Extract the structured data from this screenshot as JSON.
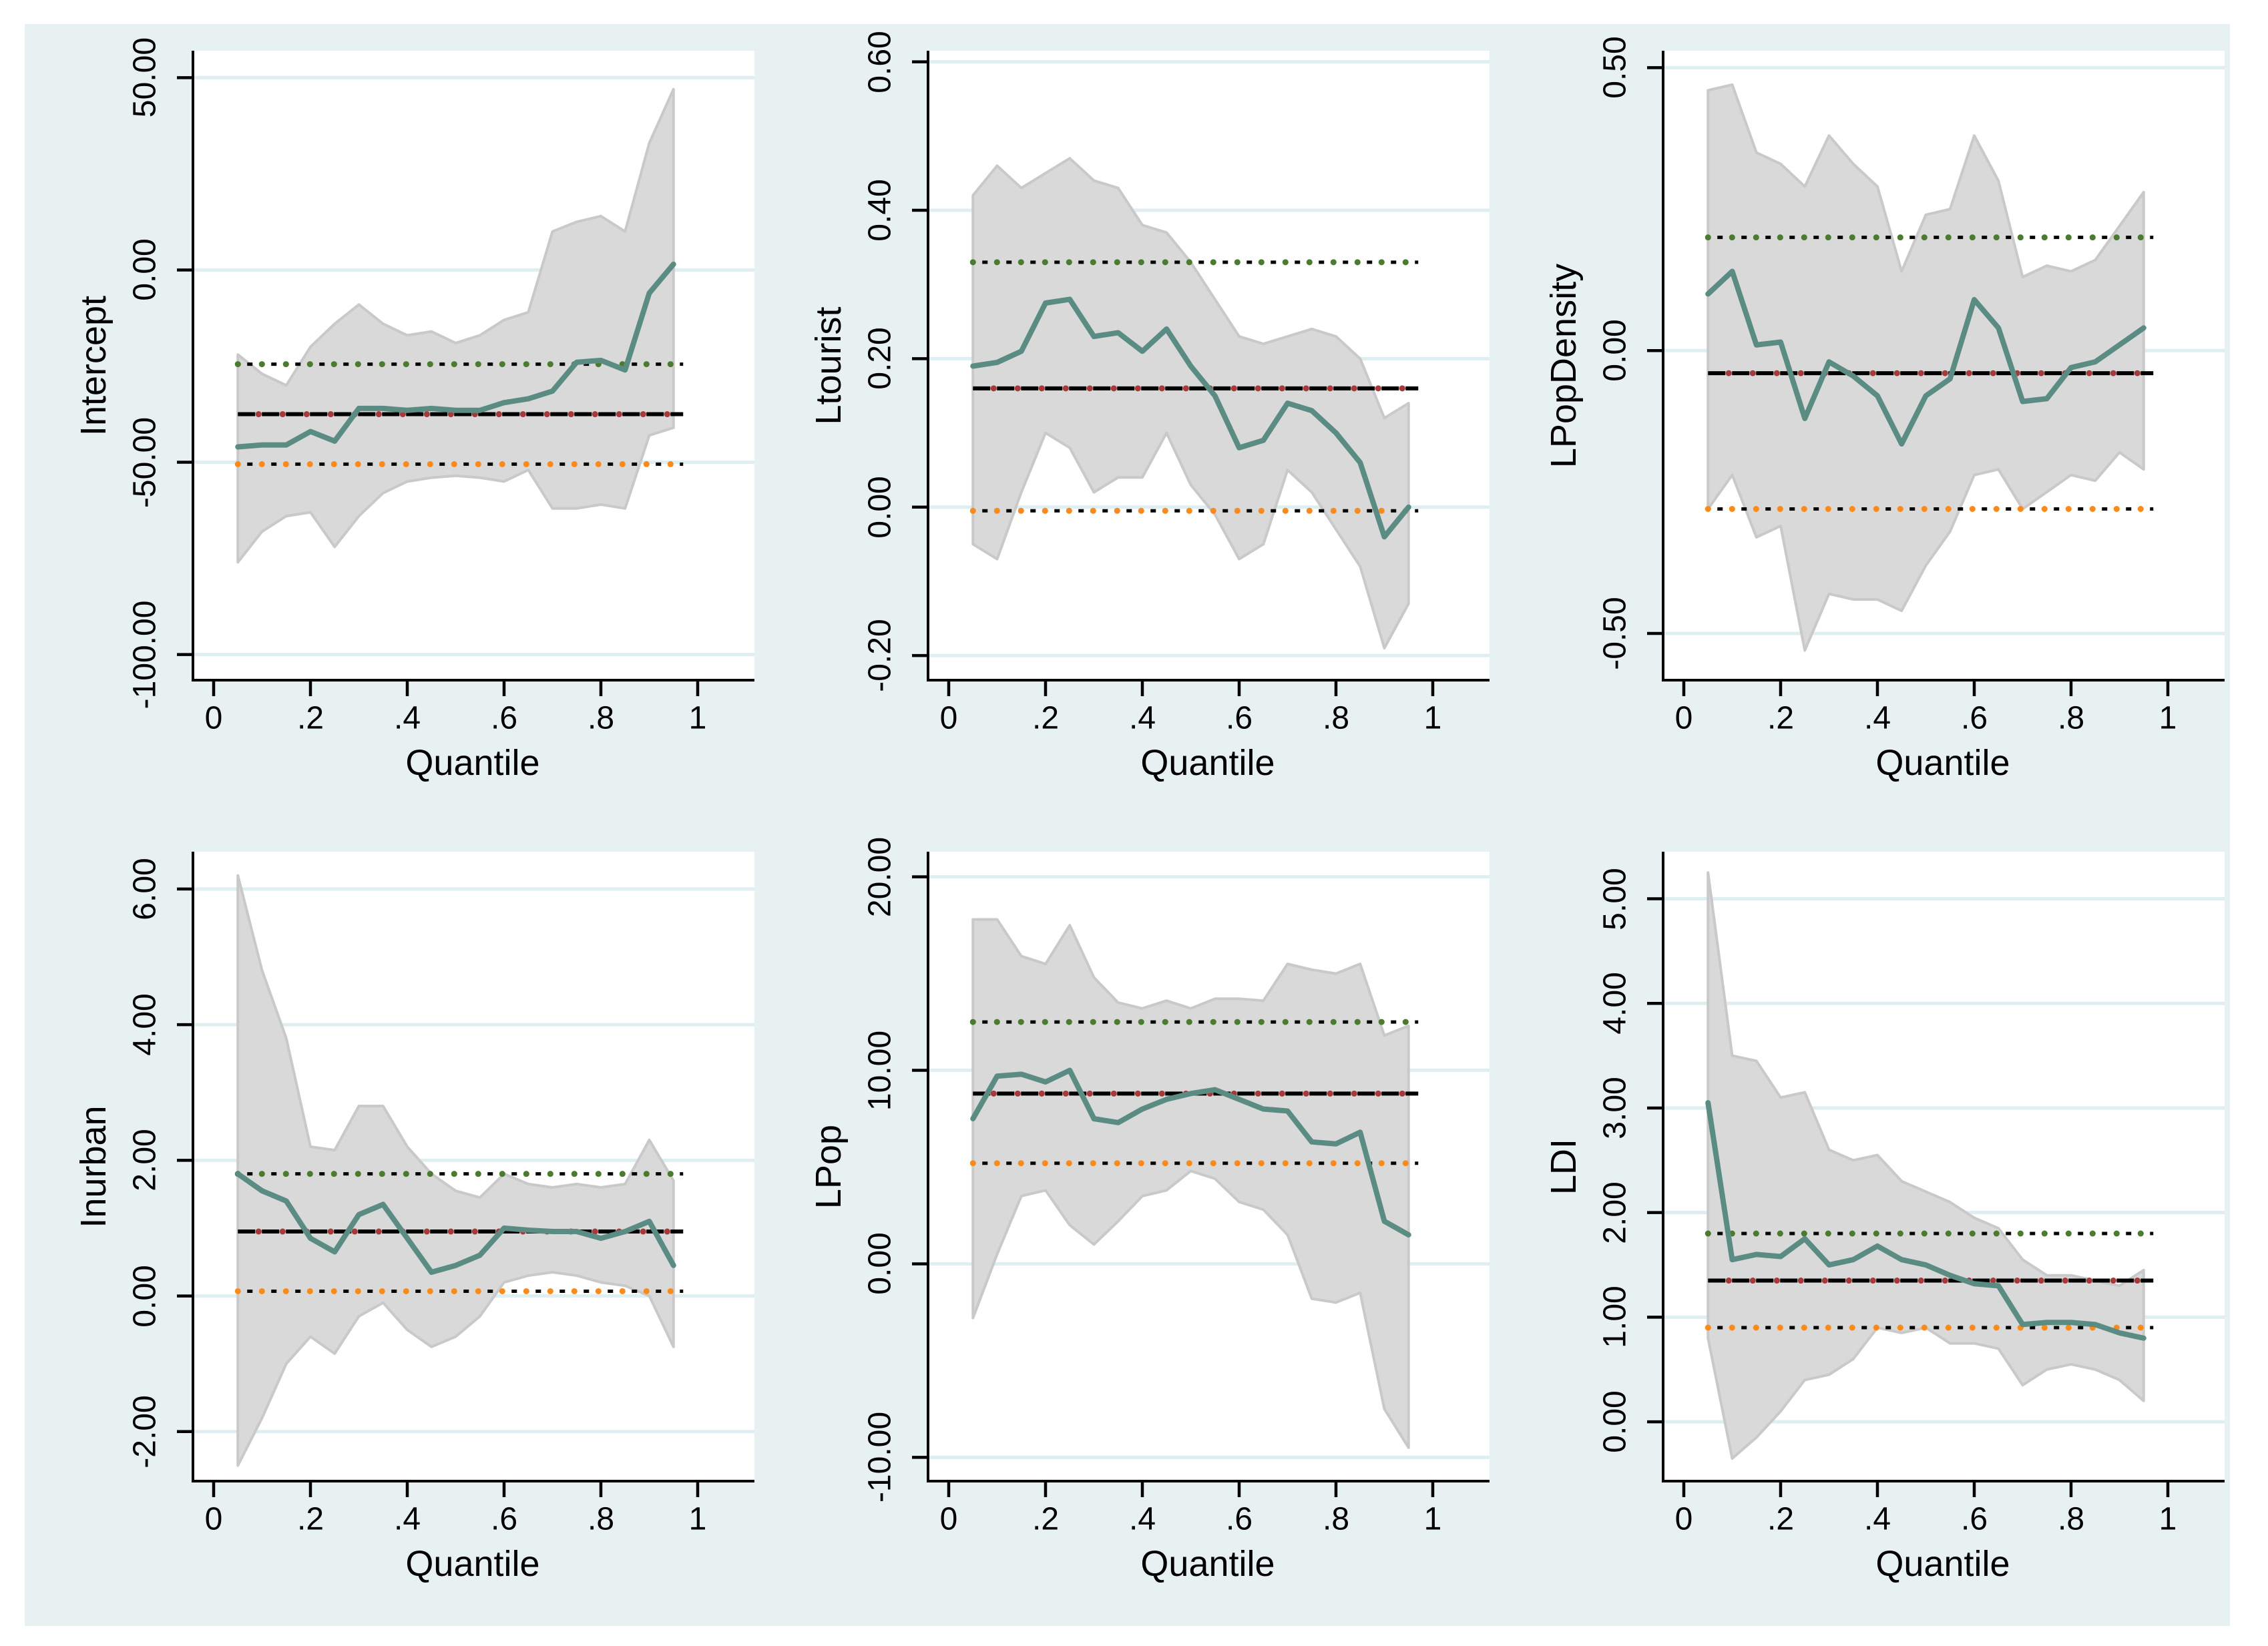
{
  "figure": {
    "outer_background": "#ffffff",
    "background": "#e7f1f2",
    "plot_background": "#ffffff",
    "gridline_color": "#dfeef0",
    "band_color": "#d9d9d9",
    "band_edge_color": "#c9c9c9",
    "estimate_line_color": "#5a8c84",
    "ols_dash_color": "#000000",
    "ols_dot_color": "#a63a3a",
    "ols_ci_upper_dot_color": "#4a7b2e",
    "ols_ci_lower_dot_color": "#f98b1c",
    "ci_dash_color": "#000000",
    "xlabel": "Quantile",
    "xticks": [
      {
        "v": 0.0,
        "label": "0"
      },
      {
        "v": 0.2,
        "label": ".2"
      },
      {
        "v": 0.4,
        "label": ".4"
      },
      {
        "v": 0.6,
        "label": ".6"
      },
      {
        "v": 0.8,
        "label": ".8"
      },
      {
        "v": 1.0,
        "label": "1"
      }
    ],
    "xlim": [
      -0.045,
      1.117
    ]
  },
  "chart_data": [
    {
      "type": "line",
      "ylabel": "Intercept",
      "xlabel": "Quantile",
      "x": [
        0.05,
        0.1,
        0.15,
        0.2,
        0.25,
        0.3,
        0.35,
        0.4,
        0.45,
        0.5,
        0.55,
        0.6,
        0.65,
        0.7,
        0.75,
        0.8,
        0.85,
        0.9,
        0.95
      ],
      "series": [
        {
          "name": "quantile_regression_estimate",
          "values": [
            -46,
            -45.5,
            -45.5,
            -42,
            -44.5,
            -36,
            -36,
            -36.5,
            -36,
            -36.5,
            -36.5,
            -34.5,
            -33.5,
            -31.5,
            -24,
            -23.5,
            -26,
            -6,
            1.5
          ]
        },
        {
          "name": "confidence_band_upper",
          "values": [
            -22,
            -27,
            -30,
            -20,
            -14,
            -9,
            -14,
            -17,
            -16,
            -19,
            -17,
            -13,
            -11,
            10,
            12.5,
            14,
            10,
            33,
            47
          ]
        },
        {
          "name": "confidence_band_lower",
          "values": [
            -76,
            -68,
            -64,
            -63,
            -72,
            -64,
            -58,
            -55,
            -54,
            -53.5,
            -54,
            -55,
            -52,
            -62,
            -62,
            -61,
            -62,
            -43,
            -41
          ]
        }
      ],
      "ols_line": {
        "estimate": -37.5,
        "ci_upper": -24.5,
        "ci_lower": -50.5
      },
      "ylim": [
        -107,
        57
      ],
      "yticks": [
        {
          "v": 50,
          "label": "50.00"
        },
        {
          "v": 0,
          "label": "0.00"
        },
        {
          "v": -50,
          "label": "-50.00"
        },
        {
          "v": -100,
          "label": "-100.00"
        }
      ],
      "grid": true,
      "legend": "none"
    },
    {
      "type": "line",
      "ylabel": "Ltourist",
      "xlabel": "Quantile",
      "x": [
        0.05,
        0.1,
        0.15,
        0.2,
        0.25,
        0.3,
        0.35,
        0.4,
        0.45,
        0.5,
        0.55,
        0.6,
        0.65,
        0.7,
        0.75,
        0.8,
        0.85,
        0.9,
        0.95
      ],
      "series": [
        {
          "name": "quantile_regression_estimate",
          "values": [
            0.19,
            0.195,
            0.21,
            0.275,
            0.28,
            0.23,
            0.235,
            0.21,
            0.24,
            0.19,
            0.15,
            0.08,
            0.09,
            0.14,
            0.13,
            0.1,
            0.06,
            -0.04,
            0.0
          ]
        },
        {
          "name": "confidence_band_upper",
          "values": [
            0.42,
            0.46,
            0.43,
            0.45,
            0.47,
            0.44,
            0.43,
            0.38,
            0.37,
            0.33,
            0.28,
            0.23,
            0.22,
            0.23,
            0.24,
            0.23,
            0.2,
            0.12,
            0.14
          ]
        },
        {
          "name": "confidence_band_lower",
          "values": [
            -0.05,
            -0.07,
            0.02,
            0.1,
            0.08,
            0.02,
            0.04,
            0.04,
            0.1,
            0.03,
            -0.01,
            -0.07,
            -0.05,
            0.05,
            0.02,
            -0.03,
            -0.08,
            -0.19,
            -0.13
          ]
        }
      ],
      "ols_line": {
        "estimate": 0.16,
        "ci_upper": 0.33,
        "ci_lower": -0.005
      },
      "ylim": [
        -0.235,
        0.615
      ],
      "yticks": [
        {
          "v": 0.6,
          "label": "0.60"
        },
        {
          "v": 0.4,
          "label": "0.40"
        },
        {
          "v": 0.2,
          "label": "0.20"
        },
        {
          "v": 0.0,
          "label": "0.00"
        },
        {
          "v": -0.2,
          "label": "-0.20"
        }
      ],
      "grid": true,
      "legend": "none"
    },
    {
      "type": "line",
      "ylabel": "LPopDensity",
      "xlabel": "Quantile",
      "x": [
        0.05,
        0.1,
        0.15,
        0.2,
        0.25,
        0.3,
        0.35,
        0.4,
        0.45,
        0.5,
        0.55,
        0.6,
        0.65,
        0.7,
        0.75,
        0.8,
        0.85,
        0.9,
        0.95
      ],
      "series": [
        {
          "name": "quantile_regression_estimate",
          "values": [
            0.1,
            0.14,
            0.01,
            0.015,
            -0.12,
            -0.02,
            -0.045,
            -0.08,
            -0.165,
            -0.08,
            -0.05,
            0.09,
            0.04,
            -0.09,
            -0.085,
            -0.03,
            -0.02,
            0.01,
            0.04
          ]
        },
        {
          "name": "confidence_band_upper",
          "values": [
            0.46,
            0.47,
            0.35,
            0.33,
            0.29,
            0.38,
            0.33,
            0.29,
            0.14,
            0.24,
            0.25,
            0.38,
            0.3,
            0.13,
            0.15,
            0.14,
            0.16,
            0.22,
            0.28
          ]
        },
        {
          "name": "confidence_band_lower",
          "values": [
            -0.28,
            -0.22,
            -0.33,
            -0.31,
            -0.53,
            -0.43,
            -0.44,
            -0.44,
            -0.46,
            -0.38,
            -0.32,
            -0.22,
            -0.21,
            -0.28,
            -0.25,
            -0.22,
            -0.23,
            -0.18,
            -0.21
          ]
        }
      ],
      "ols_line": {
        "estimate": -0.04,
        "ci_upper": 0.2,
        "ci_lower": -0.28
      },
      "ylim": [
        -0.585,
        0.53
      ],
      "yticks": [
        {
          "v": 0.5,
          "label": "0.50"
        },
        {
          "v": 0.0,
          "label": "0.00"
        },
        {
          "v": -0.5,
          "label": "-0.50"
        }
      ],
      "grid": true,
      "legend": "none"
    },
    {
      "type": "line",
      "ylabel": "Inurban",
      "xlabel": "Quantile",
      "x": [
        0.05,
        0.1,
        0.15,
        0.2,
        0.25,
        0.3,
        0.35,
        0.4,
        0.45,
        0.5,
        0.55,
        0.6,
        0.65,
        0.7,
        0.75,
        0.8,
        0.85,
        0.9,
        0.95
      ],
      "series": [
        {
          "name": "quantile_regression_estimate",
          "values": [
            1.8,
            1.55,
            1.4,
            0.85,
            0.65,
            1.2,
            1.35,
            0.85,
            0.35,
            0.45,
            0.6,
            1.0,
            0.97,
            0.95,
            0.95,
            0.85,
            0.95,
            1.1,
            0.45
          ]
        },
        {
          "name": "confidence_band_upper",
          "values": [
            6.2,
            4.8,
            3.8,
            2.2,
            2.15,
            2.8,
            2.8,
            2.2,
            1.8,
            1.55,
            1.45,
            1.8,
            1.65,
            1.6,
            1.65,
            1.6,
            1.65,
            2.3,
            1.7
          ]
        },
        {
          "name": "confidence_band_lower",
          "values": [
            -2.5,
            -1.8,
            -1.0,
            -0.6,
            -0.85,
            -0.3,
            -0.1,
            -0.5,
            -0.75,
            -0.6,
            -0.3,
            0.2,
            0.3,
            0.35,
            0.3,
            0.2,
            0.15,
            0.0,
            -0.75
          ]
        }
      ],
      "ols_line": {
        "estimate": 0.95,
        "ci_upper": 1.8,
        "ci_lower": 0.07
      },
      "ylim": [
        -2.75,
        6.55
      ],
      "yticks": [
        {
          "v": 6,
          "label": "6.00"
        },
        {
          "v": 4,
          "label": "4.00"
        },
        {
          "v": 2,
          "label": "2.00"
        },
        {
          "v": 0,
          "label": "0.00"
        },
        {
          "v": -2,
          "label": "-2.00"
        }
      ],
      "grid": true,
      "legend": "none"
    },
    {
      "type": "line",
      "ylabel": "LPop",
      "xlabel": "Quantile",
      "x": [
        0.05,
        0.1,
        0.15,
        0.2,
        0.25,
        0.3,
        0.35,
        0.4,
        0.45,
        0.5,
        0.55,
        0.6,
        0.65,
        0.7,
        0.75,
        0.8,
        0.85,
        0.9,
        0.95
      ],
      "series": [
        {
          "name": "quantile_regression_estimate",
          "values": [
            7.5,
            9.7,
            9.8,
            9.4,
            10.0,
            7.5,
            7.3,
            8.0,
            8.5,
            8.8,
            9.0,
            8.5,
            8.0,
            7.9,
            6.3,
            6.2,
            6.8,
            2.2,
            1.5
          ]
        },
        {
          "name": "confidence_band_upper",
          "values": [
            17.8,
            17.8,
            15.9,
            15.5,
            17.5,
            14.8,
            13.5,
            13.2,
            13.6,
            13.2,
            13.7,
            13.7,
            13.6,
            15.5,
            15.2,
            15.0,
            15.5,
            11.8,
            12.3
          ]
        },
        {
          "name": "confidence_band_lower",
          "values": [
            -2.8,
            0.5,
            3.5,
            3.8,
            2.0,
            1.0,
            2.2,
            3.5,
            3.8,
            4.8,
            4.4,
            3.2,
            2.8,
            1.5,
            -1.8,
            -2.0,
            -1.5,
            -7.5,
            -9.5
          ]
        }
      ],
      "ols_line": {
        "estimate": 8.8,
        "ci_upper": 12.5,
        "ci_lower": 5.2
      },
      "ylim": [
        -11.3,
        21.3
      ],
      "yticks": [
        {
          "v": 20,
          "label": "20.00"
        },
        {
          "v": 10,
          "label": "10.00"
        },
        {
          "v": 0,
          "label": "0.00"
        },
        {
          "v": -10,
          "label": "-10.00"
        }
      ],
      "grid": true,
      "legend": "none"
    },
    {
      "type": "line",
      "ylabel": "LDI",
      "xlabel": "Quantile",
      "x": [
        0.05,
        0.1,
        0.15,
        0.2,
        0.25,
        0.3,
        0.35,
        0.4,
        0.45,
        0.5,
        0.55,
        0.6,
        0.65,
        0.7,
        0.75,
        0.8,
        0.85,
        0.9,
        0.95
      ],
      "series": [
        {
          "name": "quantile_regression_estimate",
          "values": [
            3.05,
            1.55,
            1.6,
            1.58,
            1.75,
            1.5,
            1.55,
            1.68,
            1.55,
            1.5,
            1.4,
            1.32,
            1.3,
            0.93,
            0.95,
            0.95,
            0.93,
            0.85,
            0.8
          ]
        },
        {
          "name": "confidence_band_upper",
          "values": [
            5.25,
            3.5,
            3.45,
            3.1,
            3.15,
            2.6,
            2.5,
            2.55,
            2.3,
            2.2,
            2.1,
            1.95,
            1.85,
            1.55,
            1.4,
            1.4,
            1.35,
            1.3,
            1.45
          ]
        },
        {
          "name": "confidence_band_lower",
          "values": [
            0.8,
            -0.35,
            -0.15,
            0.1,
            0.4,
            0.45,
            0.6,
            0.9,
            0.85,
            0.9,
            0.75,
            0.75,
            0.7,
            0.35,
            0.5,
            0.55,
            0.5,
            0.4,
            0.2
          ]
        }
      ],
      "ols_line": {
        "estimate": 1.35,
        "ci_upper": 1.8,
        "ci_lower": 0.9
      },
      "ylim": [
        -0.58,
        5.45
      ],
      "yticks": [
        {
          "v": 5,
          "label": "5.00"
        },
        {
          "v": 4,
          "label": "4.00"
        },
        {
          "v": 3,
          "label": "3.00"
        },
        {
          "v": 2,
          "label": "2.00"
        },
        {
          "v": 1,
          "label": "1.00"
        },
        {
          "v": 0,
          "label": "0.00"
        }
      ],
      "grid": true,
      "legend": "none"
    }
  ]
}
